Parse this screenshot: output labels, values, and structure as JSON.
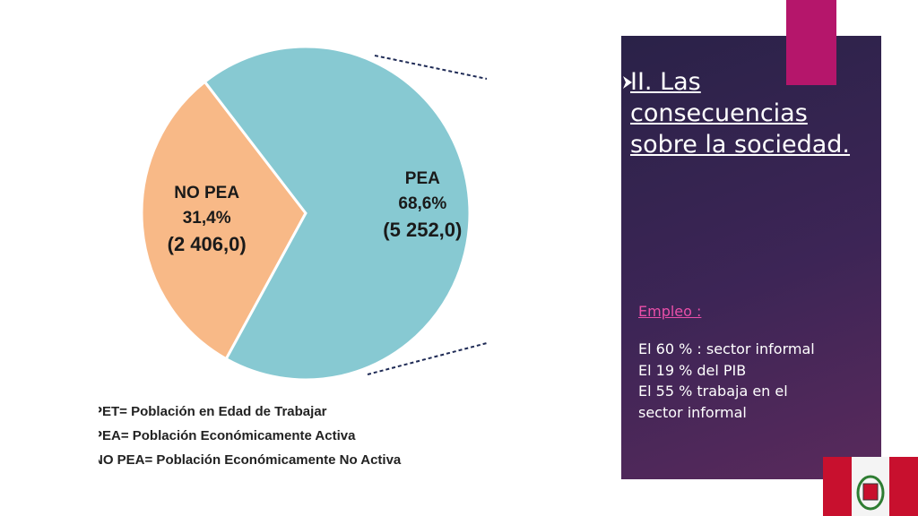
{
  "chart_data": {
    "type": "pie",
    "categories": [
      "NO PEA",
      "PEA"
    ],
    "values": [
      31.4,
      68.6
    ],
    "value_labels": [
      "31,4%",
      "68,6%"
    ],
    "counts": [
      2406.0,
      5252.0
    ],
    "count_labels": [
      "(2 406,0)",
      "(5 252,0)"
    ],
    "colors": [
      "#f8b987",
      "#87c9d2"
    ]
  },
  "legend": [
    "PET= Población en Edad de Trabajar",
    "PEA= Población Económicamente Activa",
    "NO PEA= Población Económicamente No Activa"
  ],
  "panel": {
    "title": "II. Las consecuencias sobre la sociedad.",
    "subtitle": "Empleo :",
    "lines": [
      "El 60 % : sector informal",
      "El 19 % del PIB",
      "El 55 % trabaja en el",
      "sector informal"
    ]
  }
}
